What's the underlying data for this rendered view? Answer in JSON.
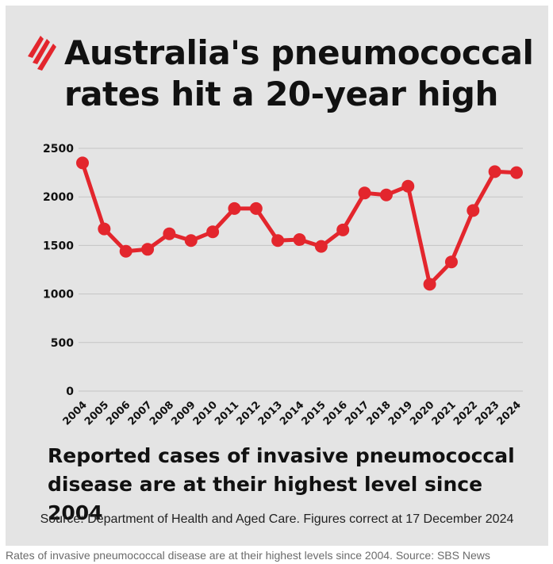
{
  "card": {
    "title": "Australia's pneumococcal rates hit a 20-year high",
    "subtitle": "Reported cases of invasive pneumococcal disease are at their highest level since 2004",
    "source": "Source: Department of Health and Aged Care. Figures correct at 17 December 2024"
  },
  "caption": "Rates of invasive pneumococcal disease are at their highest levels since 2004. Source: SBS News",
  "logo": {
    "icon": "sbs-logo-icon",
    "color": "#e3262d"
  },
  "chart_data": {
    "type": "line",
    "title": "",
    "xlabel": "",
    "ylabel": "",
    "categories": [
      "2004",
      "2005",
      "2006",
      "2007",
      "2008",
      "2009",
      "2010",
      "2011",
      "2012",
      "2013",
      "2014",
      "2015",
      "2016",
      "2017",
      "2018",
      "2019",
      "2020",
      "2021",
      "2022",
      "2023",
      "2024"
    ],
    "values": [
      2350,
      1670,
      1440,
      1460,
      1620,
      1550,
      1640,
      1880,
      1880,
      1550,
      1560,
      1490,
      1660,
      2040,
      2020,
      2110,
      1100,
      1330,
      1860,
      2260,
      2250
    ],
    "ylim": [
      0,
      2500
    ],
    "yticks": [
      0,
      500,
      1000,
      1500,
      2000,
      2500
    ],
    "grid": true,
    "line_color": "#e3262d",
    "grid_color": "#c4c4c4"
  }
}
